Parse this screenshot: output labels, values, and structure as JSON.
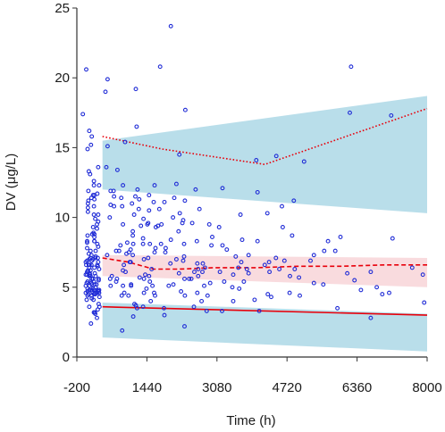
{
  "chart_data": {
    "type": "scatter",
    "xlabel": "Time (h)",
    "ylabel": "DV (μg/L)",
    "xlim": [
      -200,
      8000
    ],
    "ylim": [
      0,
      25
    ],
    "xticks": [
      "-200",
      "1440",
      "3080",
      "4720",
      "6360",
      "8000"
    ],
    "yticks": [
      "0",
      "5",
      "10",
      "15",
      "20",
      "25"
    ],
    "grid": false,
    "colors": {
      "observed_points": "#1f2bd6",
      "observed_percentiles": "#e8000b",
      "pi_band_outer": "#add8e6",
      "pi_band_median": "#f9d9dc"
    },
    "bands": [
      {
        "role": "upper",
        "x": [
          400,
          8000
        ],
        "lower": [
          12.0,
          10.3
        ],
        "upper": [
          15.5,
          18.7
        ]
      },
      {
        "role": "median",
        "x": [
          400,
          8000
        ],
        "lower": [
          5.8,
          5.0
        ],
        "upper": [
          7.3,
          7.1
        ]
      },
      {
        "role": "lower",
        "x": [
          400,
          8000
        ],
        "lower": [
          1.4,
          0.4
        ],
        "upper": [
          3.9,
          3.1
        ]
      }
    ],
    "series": [
      {
        "role": "p95",
        "style": "dotted",
        "x": [
          400,
          1800,
          4200,
          8000
        ],
        "y": [
          15.8,
          14.9,
          13.8,
          17.8
        ]
      },
      {
        "role": "p50",
        "style": "dashed",
        "x": [
          400,
          1000,
          1600,
          2200,
          3000,
          4000,
          5000,
          6000,
          7000,
          8000
        ],
        "y": [
          7.1,
          6.8,
          6.3,
          6.3,
          6.4,
          6.4,
          6.5,
          6.5,
          6.6,
          6.6
        ]
      },
      {
        "role": "p05",
        "style": "solid",
        "x": [
          400,
          8000
        ],
        "y": [
          3.6,
          3.0
        ]
      }
    ],
    "points": [
      [
        210,
        8.3
      ],
      [
        320,
        4.6
      ],
      [
        80,
        6.6
      ],
      [
        230,
        4.6
      ],
      [
        310,
        5.5
      ],
      [
        140,
        5.3
      ],
      [
        240,
        7.6
      ],
      [
        10,
        6.8
      ],
      [
        50,
        5.4
      ],
      [
        50,
        4.7
      ],
      [
        160,
        4.7
      ],
      [
        50,
        4.4
      ],
      [
        100,
        6.0
      ],
      [
        310,
        4.7
      ],
      [
        180,
        5.6
      ],
      [
        230,
        4.5
      ],
      [
        60,
        11.0
      ],
      [
        20,
        6.6
      ],
      [
        80,
        13.3
      ],
      [
        200,
        5.4
      ],
      [
        210,
        11.6
      ],
      [
        200,
        12.6
      ],
      [
        10,
        5.9
      ],
      [
        90,
        6.4
      ],
      [
        40,
        7.8
      ],
      [
        110,
        13.1
      ],
      [
        330,
        3.6
      ],
      [
        200,
        10.8
      ],
      [
        310,
        3.8
      ],
      [
        240,
        5.0
      ],
      [
        150,
        6.9
      ],
      [
        300,
        4.8
      ],
      [
        230,
        7.1
      ],
      [
        210,
        11.3
      ],
      [
        210,
        8.8
      ],
      [
        260,
        5.2
      ],
      [
        210,
        6.4
      ],
      [
        300,
        9.7
      ],
      [
        40,
        8.3
      ],
      [
        30,
        4.1
      ],
      [
        270,
        9.2
      ],
      [
        300,
        7.9
      ],
      [
        240,
        7.2
      ],
      [
        120,
        6.2
      ],
      [
        140,
        6.6
      ],
      [
        200,
        4.5
      ],
      [
        230,
        9.9
      ],
      [
        320,
        4.8
      ],
      [
        120,
        7.6
      ],
      [
        120,
        5.8
      ],
      [
        180,
        9.3
      ],
      [
        200,
        12.3
      ],
      [
        290,
        7.1
      ],
      [
        110,
        5.9
      ],
      [
        300,
        10.2
      ],
      [
        70,
        4.5
      ],
      [
        150,
        4.8
      ],
      [
        60,
        10.7
      ],
      [
        70,
        11.2
      ],
      [
        70,
        11.9
      ],
      [
        40,
        6.1
      ],
      [
        220,
        5.2
      ],
      [
        270,
        4.6
      ],
      [
        320,
        6.3
      ],
      [
        310,
        5.6
      ],
      [
        140,
        11.4
      ],
      [
        200,
        10.2
      ],
      [
        90,
        7.0
      ],
      [
        60,
        6.2
      ],
      [
        290,
        3.4
      ],
      [
        270,
        9.5
      ],
      [
        200,
        3.2
      ],
      [
        30,
        5.3
      ],
      [
        50,
        14.9
      ],
      [
        300,
        13.6
      ],
      [
        40,
        6.9
      ],
      [
        330,
        4.3
      ],
      [
        90,
        3.6
      ],
      [
        320,
        12.3
      ],
      [
        280,
        11.7
      ],
      [
        220,
        6.0
      ],
      [
        150,
        4.4
      ],
      [
        280,
        8.1
      ],
      [
        210,
        8.6
      ],
      [
        50,
        4.9
      ],
      [
        220,
        3.2
      ],
      [
        100,
        6.6
      ],
      [
        300,
        6.8
      ],
      [
        40,
        8.2
      ],
      [
        180,
        7.0
      ],
      [
        100,
        5.1
      ],
      [
        130,
        15.2
      ],
      [
        150,
        5.2
      ],
      [
        40,
        5.9
      ],
      [
        150,
        15.8
      ],
      [
        290,
        6.5
      ],
      [
        190,
        8.9
      ],
      [
        50,
        8.7
      ],
      [
        150,
        5.6
      ],
      [
        230,
        3.1
      ],
      [
        20,
        20.6
      ],
      [
        160,
        8.8
      ],
      [
        90,
        4.8
      ],
      [
        180,
        11.6
      ],
      [
        60,
        10.4
      ],
      [
        130,
        2.4
      ],
      [
        -60,
        17.4
      ],
      [
        240,
        5.8
      ],
      [
        280,
        6.6
      ],
      [
        10,
        4.6
      ],
      [
        150,
        4.2
      ],
      [
        50,
        6.1
      ],
      [
        270,
        2.8
      ],
      [
        10,
        5.1
      ],
      [
        210,
        8.3
      ],
      [
        180,
        4.9
      ],
      [
        120,
        5.4
      ],
      [
        190,
        4.1
      ],
      [
        140,
        7.3
      ],
      [
        200,
        4.8
      ],
      [
        120,
        7.1
      ],
      [
        80,
        7.4
      ],
      [
        90,
        5.8
      ],
      [
        90,
        16.2
      ],
      [
        1430,
        4.9
      ],
      [
        1060,
        6.8
      ],
      [
        1780,
        9.5
      ],
      [
        1550,
        6.3
      ],
      [
        1110,
        8.7
      ],
      [
        1850,
        11.1
      ],
      [
        1260,
        11.3
      ],
      [
        1700,
        9.4
      ],
      [
        1730,
        10.6
      ],
      [
        1620,
        7.5
      ],
      [
        1610,
        4.6
      ],
      [
        1640,
        7.8
      ],
      [
        1220,
        12.0
      ],
      [
        570,
        10.0
      ],
      [
        1490,
        11.6
      ],
      [
        1120,
        2.9
      ],
      [
        670,
        10.8
      ],
      [
        1060,
        7.7
      ],
      [
        1370,
        5.6
      ],
      [
        1180,
        3.7
      ],
      [
        670,
        11.5
      ],
      [
        620,
        5.8
      ],
      [
        1120,
        8.1
      ],
      [
        1530,
        4.0
      ],
      [
        940,
        6.1
      ],
      [
        1850,
        3.0
      ],
      [
        720,
        7.6
      ],
      [
        1010,
        4.4
      ],
      [
        1360,
        9.9
      ],
      [
        1840,
        3.5
      ],
      [
        1110,
        9.0
      ],
      [
        880,
        6.2
      ],
      [
        1400,
        5.9
      ],
      [
        880,
        5.1
      ],
      [
        520,
        15.1
      ],
      [
        1450,
        9.5
      ],
      [
        820,
        8.0
      ],
      [
        490,
        13.6
      ],
      [
        720,
        5.4
      ],
      [
        850,
        4.4
      ],
      [
        910,
        4.6
      ],
      [
        1880,
        7.8
      ],
      [
        1110,
        7.3
      ],
      [
        860,
        10.8
      ],
      [
        1510,
        5.4
      ],
      [
        1490,
        5.8
      ],
      [
        1170,
        11.5
      ],
      [
        470,
        19.0
      ],
      [
        1300,
        9.4
      ],
      [
        1370,
        4.6
      ],
      [
        1510,
        8.1
      ],
      [
        1620,
        12.3
      ],
      [
        790,
        7.6
      ],
      [
        1070,
        5.2
      ],
      [
        1090,
        11.0
      ],
      [
        660,
        11.9
      ],
      [
        1020,
        7.5
      ],
      [
        1370,
        7.0
      ],
      [
        880,
        9.5
      ],
      [
        1600,
        11.1
      ],
      [
        1870,
        7.5
      ],
      [
        590,
        11.9
      ],
      [
        840,
        11.4
      ],
      [
        1770,
        8.1
      ],
      [
        960,
        7.4
      ],
      [
        930,
        15.4
      ],
      [
        590,
        10.9
      ],
      [
        1250,
        10.6
      ],
      [
        750,
        13.4
      ],
      [
        1650,
        9.3
      ],
      [
        1750,
        20.8
      ],
      [
        1210,
        3.5
      ],
      [
        1040,
        6.8
      ],
      [
        1630,
        4.4
      ],
      [
        1070,
        5.1
      ],
      [
        1180,
        19.2
      ],
      [
        860,
        1.9
      ],
      [
        1200,
        16.5
      ],
      [
        740,
        5.6
      ],
      [
        1270,
        5.7
      ],
      [
        880,
        12.3
      ],
      [
        510,
        7.3
      ],
      [
        1140,
        10.2
      ],
      [
        1490,
        10.5
      ],
      [
        580,
        5.6
      ],
      [
        900,
        6.6
      ],
      [
        980,
        8.2
      ],
      [
        1150,
        3.8
      ],
      [
        520,
        19.9
      ],
      [
        1570,
        5.1
      ],
      [
        1350,
        8.1
      ],
      [
        1470,
        9.6
      ],
      [
        1350,
        8.5
      ],
      [
        1470,
        7.1
      ],
      [
        1350,
        3.6
      ],
      [
        590,
        5.1
      ],
      [
        2000,
        23.7
      ],
      [
        2340,
        17.7
      ],
      [
        2320,
        2.2
      ],
      [
        1950,
        5.1
      ],
      [
        2290,
        6.9
      ],
      [
        2480,
        5.6
      ],
      [
        2720,
        4.0
      ],
      [
        2920,
        5.3
      ],
      [
        2620,
        6.7
      ],
      [
        2210,
        10.3
      ],
      [
        2050,
        10.0
      ],
      [
        2240,
        4.7
      ],
      [
        2670,
        10.6
      ],
      [
        2190,
        6.0
      ],
      [
        2970,
        8.6
      ],
      [
        2840,
        3.3
      ],
      [
        2000,
        8.4
      ],
      [
        2330,
        11.2
      ],
      [
        2500,
        9.6
      ],
      [
        2130,
        7.0
      ],
      [
        2580,
        12.0
      ],
      [
        2540,
        3.6
      ],
      [
        2200,
        14.5
      ],
      [
        1990,
        6.7
      ],
      [
        2290,
        9.8
      ],
      [
        2950,
        8.0
      ],
      [
        2780,
        5.1
      ],
      [
        2430,
        5.6
      ],
      [
        2310,
        8.1
      ],
      [
        2610,
        8.3
      ],
      [
        2330,
        4.4
      ],
      [
        2550,
        6.1
      ],
      [
        2130,
        12.4
      ],
      [
        2270,
        9.6
      ],
      [
        2620,
        4.6
      ],
      [
        2740,
        6.1
      ],
      [
        2900,
        9.5
      ],
      [
        2060,
        5.2
      ],
      [
        2860,
        4.4
      ],
      [
        2750,
        6.7
      ],
      [
        2080,
        11.4
      ],
      [
        2320,
        5.6
      ],
      [
        2640,
        5.8
      ],
      [
        2310,
        7.2
      ],
      [
        2640,
        6.3
      ],
      [
        2180,
        9.0
      ],
      [
        2800,
        6.4
      ],
      [
        3150,
        6.1
      ],
      [
        3310,
        7.7
      ],
      [
        3210,
        12.1
      ],
      [
        3440,
        5.0
      ],
      [
        3580,
        6.4
      ],
      [
        3710,
        5.4
      ],
      [
        3820,
        6.0
      ],
      [
        4000,
        14.1
      ],
      [
        4070,
        3.3
      ],
      [
        4200,
        6.6
      ],
      [
        4310,
        6.1
      ],
      [
        4470,
        14.4
      ],
      [
        4350,
        4.3
      ],
      [
        4660,
        6.9
      ],
      [
        4790,
        5.8
      ],
      [
        4840,
        8.7
      ],
      [
        4900,
        6.3
      ],
      [
        5120,
        14.0
      ],
      [
        5350,
        5.3
      ],
      [
        5570,
        5.2
      ],
      [
        5850,
        7.6
      ],
      [
        5970,
        8.6
      ],
      [
        6130,
        6.0
      ],
      [
        6220,
        20.8
      ],
      [
        6190,
        17.5
      ],
      [
        6300,
        5.5
      ],
      [
        6450,
        4.8
      ],
      [
        6680,
        2.8
      ],
      [
        6680,
        6.1
      ],
      [
        6820,
        5.0
      ],
      [
        6950,
        4.5
      ],
      [
        7110,
        4.6
      ],
      [
        7160,
        17.3
      ],
      [
        7190,
        8.5
      ],
      [
        7650,
        6.4
      ],
      [
        7900,
        5.9
      ],
      [
        7930,
        3.9
      ],
      [
        3460,
        4.0
      ],
      [
        3820,
        7.3
      ],
      [
        4600,
        10.8
      ],
      [
        4780,
        4.6
      ],
      [
        5590,
        7.6
      ],
      [
        5020,
        4.4
      ],
      [
        3520,
        7.2
      ],
      [
        3670,
        8.4
      ],
      [
        4030,
        11.8
      ],
      [
        4030,
        8.3
      ],
      [
        3650,
        6.8
      ],
      [
        4540,
        6.3
      ],
      [
        3960,
        4.1
      ],
      [
        5000,
        5.7
      ],
      [
        4300,
        6.8
      ],
      [
        3200,
        3.3
      ],
      [
        3130,
        9.3
      ],
      [
        3210,
        8.0
      ],
      [
        3630,
        10.2
      ],
      [
        4270,
        4.5
      ],
      [
        4880,
        11.2
      ],
      [
        3460,
        5.9
      ],
      [
        3780,
        6.3
      ],
      [
        4620,
        9.3
      ],
      [
        5270,
        6.9
      ],
      [
        4460,
        7.1
      ],
      [
        5350,
        7.3
      ],
      [
        5680,
        8.3
      ],
      [
        3250,
        5.4
      ],
      [
        3600,
        4.9
      ],
      [
        4260,
        10.3
      ],
      [
        5900,
        3.5
      ]
    ]
  }
}
